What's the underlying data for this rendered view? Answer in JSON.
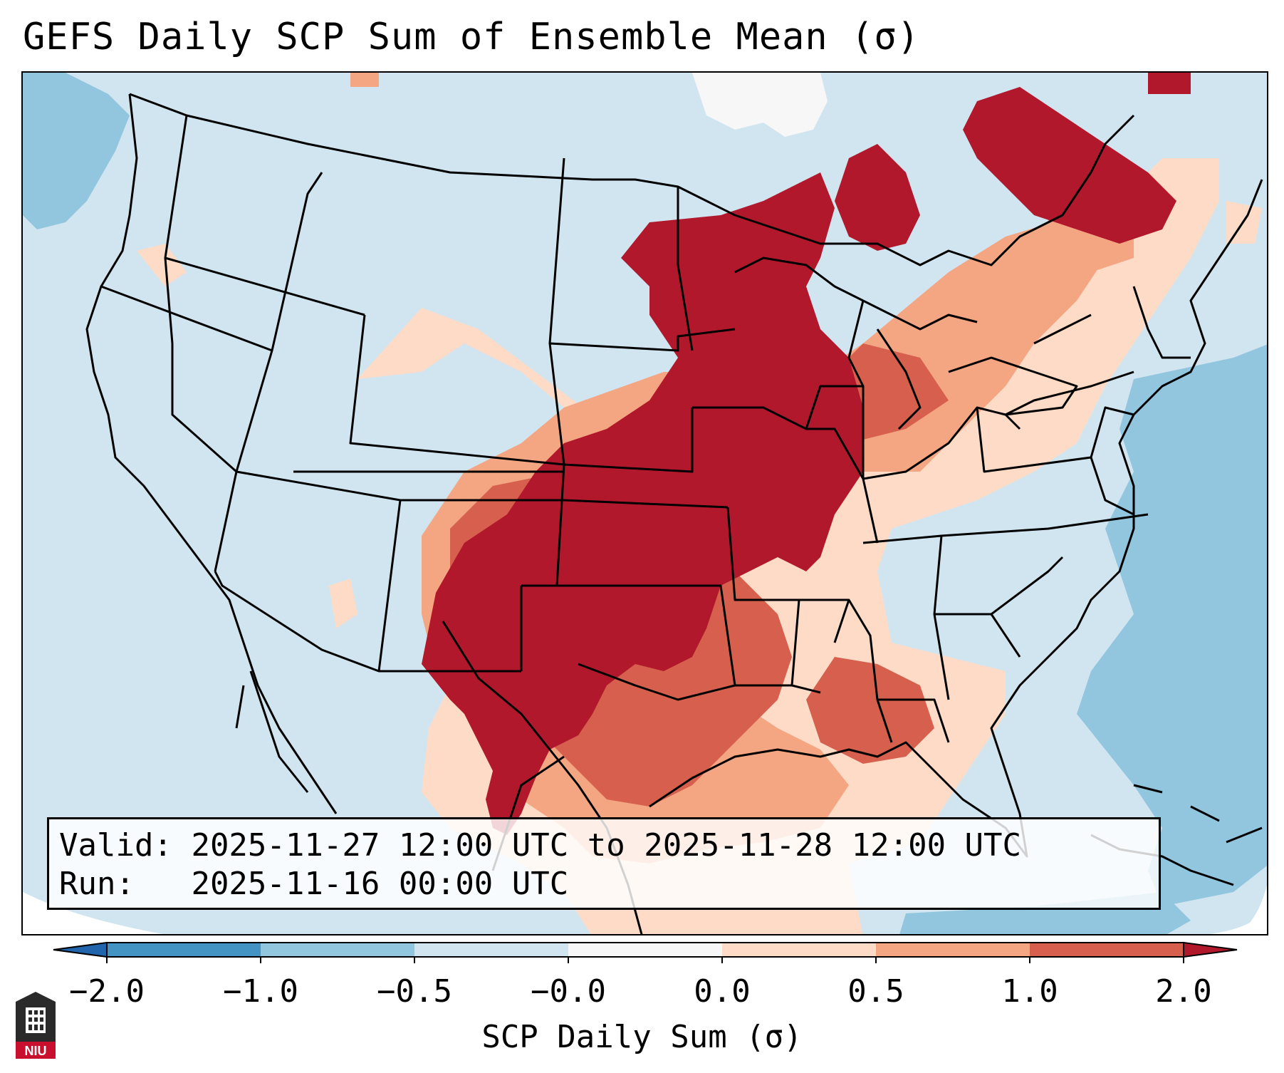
{
  "title": "GEFS Daily SCP Sum of Ensemble Mean (σ)",
  "info": {
    "valid_label": "Valid:",
    "valid_value": "2025-11-27 12:00 UTC to 2025-11-28 12:00 UTC",
    "run_label": "Run:",
    "run_value": "2025-11-16 00:00 UTC"
  },
  "colorbar": {
    "label": "SCP Daily Sum (σ)",
    "ticks": [
      "−2.0",
      "−1.0",
      "−0.5",
      "−0.0",
      "0.0",
      "0.5",
      "1.0",
      "2.0"
    ],
    "colors": [
      "#2e77b8",
      "#4393c3",
      "#92c5de",
      "#d1e5f0",
      "#f7f7f7",
      "#fddbc7",
      "#f4a582",
      "#d6604d",
      "#b2182b"
    ]
  },
  "legend_levels": {
    "strong_negative": "#92c5de",
    "weak_negative": "#d1e5f0",
    "weak_positive": "#fddbc7",
    "moderate_positive": "#f4a582",
    "positive": "#d6604d",
    "strong_positive": "#b2182b"
  },
  "logo_text": "NIU"
}
